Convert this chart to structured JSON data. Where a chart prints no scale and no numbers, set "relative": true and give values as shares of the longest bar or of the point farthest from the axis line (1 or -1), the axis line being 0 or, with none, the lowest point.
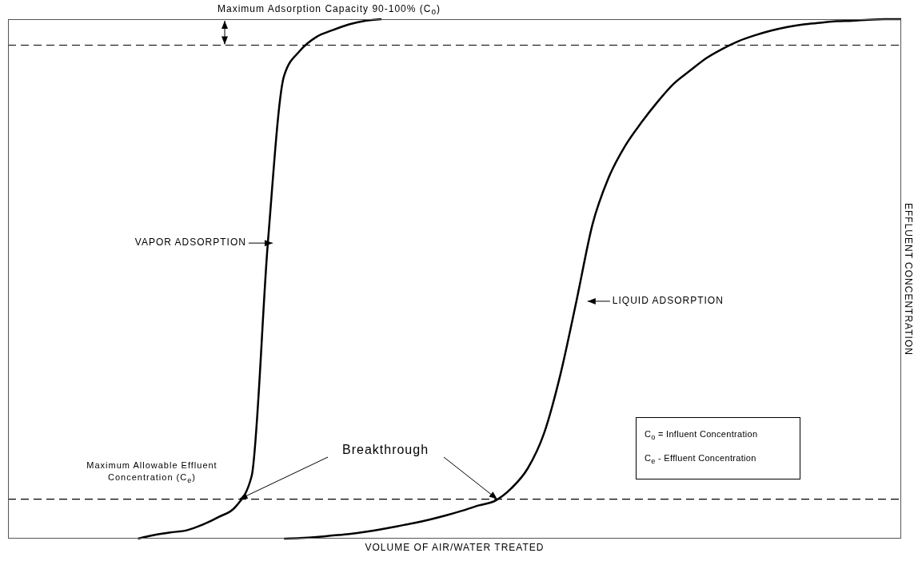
{
  "chart_data": {
    "type": "line",
    "relative": true,
    "xlabel": "VOLUME OF AIR/WATER TREATED",
    "ylabel": "EFFLUENT CONCENTRATION",
    "categories": [
      null,
      null,
      null,
      null,
      null,
      null,
      null,
      null,
      null,
      null,
      null,
      null,
      null,
      null,
      null,
      null,
      null,
      null,
      null,
      null,
      null,
      null,
      null,
      null,
      null,
      null,
      null,
      null,
      null,
      null,
      null,
      null,
      null,
      null,
      null,
      null,
      null,
      null,
      null,
      null,
      null,
      null,
      null,
      null,
      null,
      null,
      null,
      null,
      null,
      null,
      null,
      null,
      null,
      null,
      null,
      null
    ],
    "series": [
      {
        "name": "VAPOR ADSORPTION",
        "color": "#000000",
        "values": [
          null,
          null,
          null,
          null,
          null,
          null,
          null,
          null,
          0,
          0.007,
          0.012,
          0.016,
          0.027,
          0.042,
          0.061,
          0.12,
          0.569,
          0.891,
          0.94,
          0.966,
          0.979,
          0.99,
          0.997,
          1,
          null,
          null,
          null,
          null,
          null,
          null,
          null,
          null,
          null,
          null,
          null,
          null,
          null,
          null,
          null,
          null,
          null,
          null,
          null,
          null,
          null,
          null,
          null,
          null,
          null,
          null,
          null,
          null,
          null,
          null,
          null,
          null
        ]
      },
      {
        "name": "LIQUID ADSORPTION",
        "color": "#000000",
        "values": [
          null,
          null,
          null,
          null,
          null,
          null,
          null,
          null,
          null,
          null,
          null,
          null,
          null,
          null,
          null,
          null,
          null,
          0,
          0.001,
          0.003,
          0.006,
          0.009,
          0.013,
          0.018,
          0.024,
          0.03,
          0.037,
          0.045,
          0.054,
          0.064,
          0.073,
          0.097,
          0.135,
          0.202,
          0.314,
          0.457,
          0.606,
          0.696,
          0.756,
          0.801,
          0.841,
          0.876,
          0.901,
          0.925,
          0.943,
          0.958,
          0.969,
          0.978,
          0.985,
          0.99,
          0.993,
          0.996,
          0.997,
          0.999,
          1,
          1
        ]
      }
    ],
    "ref_lines": [
      {
        "axis": "y",
        "value": 0.95,
        "label": "Maximum Adsorption Capacity 90-100% (C$_{o}$)",
        "line_style": "dashed",
        "color": "#000000"
      },
      {
        "axis": "y",
        "value": 0.076,
        "label": "Maximum Allowable Effluent Concentration (C$_{e}$)",
        "line_style": "dashed",
        "color": "#000000"
      }
    ],
    "annotations": [
      "Breakthrough",
      "C$_{o}$ = Influent Concentration",
      "C$_{e}$ - Effluent Concentration"
    ],
    "line_style": "solid",
    "marker": "none",
    "grid": false
  }
}
